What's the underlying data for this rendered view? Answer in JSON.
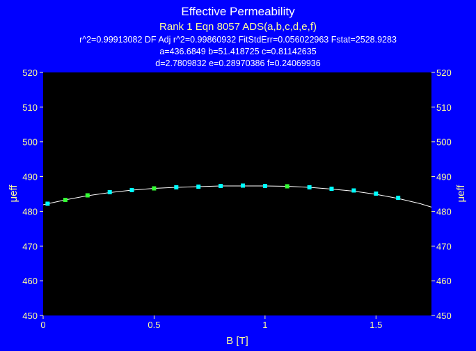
{
  "chart_data": {
    "type": "scatter",
    "title": "Effective Permeability",
    "subtitle": "Rank 1  Eqn 8057  ADS(a,b,c,d,e,f)",
    "info_lines": [
      "r^2=0.99913082  DF Adj r^2=0.99860932  FitStdErr=0.056022963  Fstat=2528.9283",
      "a=436.6849 b=51.418725 c=0.81142635",
      "d=2.7809832 e=0.28970386 f=0.24069936"
    ],
    "xlabel": "B [T]",
    "ylabel": "μeff",
    "xlim": [
      0,
      1.75
    ],
    "ylim": [
      450,
      520
    ],
    "x_ticks": [
      0,
      0.5,
      1,
      1.5
    ],
    "x_tick_labels": [
      "0",
      "0.5",
      "1",
      "1.5"
    ],
    "y_ticks": [
      450,
      460,
      470,
      480,
      490,
      500,
      510,
      520
    ],
    "y_tick_labels": [
      "450",
      "460",
      "470",
      "480",
      "490",
      "500",
      "510",
      "520"
    ],
    "grid": false,
    "series": [
      {
        "name": "data",
        "x": [
          0.02,
          0.1,
          0.2,
          0.3,
          0.4,
          0.5,
          0.6,
          0.7,
          0.8,
          0.9,
          1.0,
          1.1,
          1.2,
          1.3,
          1.4,
          1.5,
          1.6
        ],
        "y": [
          482.2,
          483.3,
          484.6,
          485.5,
          486.1,
          486.6,
          486.9,
          487.1,
          487.3,
          487.4,
          487.3,
          487.2,
          486.9,
          486.5,
          486.0,
          485.1,
          483.9
        ],
        "colors": [
          "#00ffff",
          "#33ff33",
          "#33ff33",
          "#00ffff",
          "#00ffff",
          "#33ff33",
          "#00ffff",
          "#00ffff",
          "#00ffff",
          "#00ffff",
          "#00ffff",
          "#33ff33",
          "#00ffff",
          "#00ffff",
          "#00ffff",
          "#00ffff",
          "#00ffff"
        ]
      }
    ],
    "fit_curve": {
      "x": [
        0,
        0.1,
        0.2,
        0.3,
        0.4,
        0.5,
        0.6,
        0.7,
        0.8,
        0.9,
        1.0,
        1.1,
        1.2,
        1.3,
        1.4,
        1.5,
        1.6,
        1.7,
        1.75
      ],
      "y": [
        481.9,
        483.3,
        484.5,
        485.4,
        486.1,
        486.6,
        486.9,
        487.1,
        487.3,
        487.3,
        487.3,
        487.2,
        486.9,
        486.4,
        485.8,
        484.9,
        483.7,
        482.2,
        481.2
      ],
      "color": "#ffffff"
    },
    "colors": {
      "background": "#0000ff",
      "plot_area": "#000000",
      "text": "#ffff99",
      "title": "#ffffff"
    }
  }
}
